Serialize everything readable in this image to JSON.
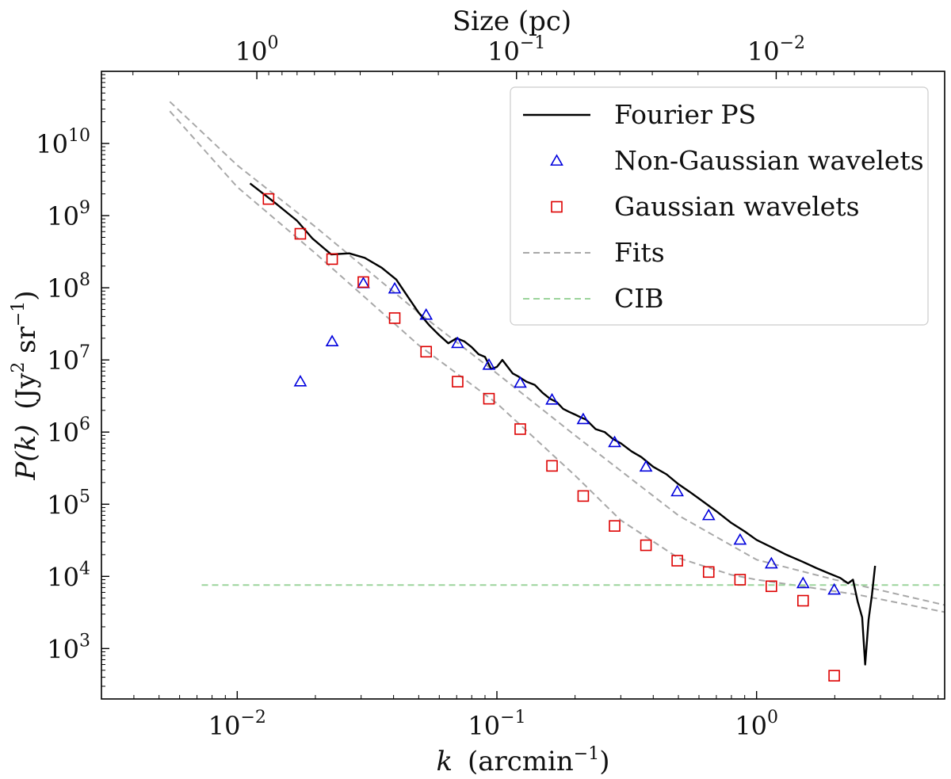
{
  "chart_data": {
    "type": "scatter",
    "title": "",
    "xlabel_main": "k",
    "xlabel_unit": "(arcmin",
    "xlabel_sup": "−1",
    "xlabel_close": ")",
    "ylabel_main": "P(k)",
    "ylabel_unit": "(Jy",
    "ylabel_sup1": "2",
    "ylabel_mid": " sr",
    "ylabel_sup2": "−1",
    "ylabel_close": ")",
    "top_axis_label": "Size (pc)",
    "xscale": "log",
    "yscale": "log",
    "xlim": [
      0.003,
      5.3
    ],
    "ylim": [
      200,
      100000000000
    ],
    "x_ticks": [
      {
        "value": 0.01,
        "base": "10",
        "exp": "−2"
      },
      {
        "value": 0.1,
        "base": "10",
        "exp": "−1"
      },
      {
        "value": 1,
        "base": "10",
        "exp": "0"
      }
    ],
    "y_ticks": [
      {
        "value": 1000,
        "base": "10",
        "exp": "3"
      },
      {
        "value": 10000,
        "base": "10",
        "exp": "4"
      },
      {
        "value": 100000,
        "base": "10",
        "exp": "5"
      },
      {
        "value": 1000000,
        "base": "10",
        "exp": "6"
      },
      {
        "value": 10000000,
        "base": "10",
        "exp": "7"
      },
      {
        "value": 100000000,
        "base": "10",
        "exp": "8"
      },
      {
        "value": 1000000000,
        "base": "10",
        "exp": "9"
      },
      {
        "value": 10000000000,
        "base": "10",
        "exp": "10"
      }
    ],
    "top_ticks": [
      {
        "value": 1,
        "base": "10",
        "exp": "0"
      },
      {
        "value": 0.1,
        "base": "10",
        "exp": "−1"
      },
      {
        "value": 0.01,
        "base": "10",
        "exp": "−2"
      }
    ],
    "top_axis_k_per_inverse_pc": 0.0119,
    "legend_position": "top-right",
    "legend": [
      {
        "label": "Fourier PS",
        "style": "line",
        "color": "#000000"
      },
      {
        "label": "Non-Gaussian wavelets",
        "style": "triangle",
        "color": "#0000dd"
      },
      {
        "label": "Gaussian wavelets",
        "style": "square",
        "color": "#dd0000"
      },
      {
        "label": "Fits",
        "style": "dashed",
        "color": "#a8a8a8"
      },
      {
        "label": "CIB",
        "style": "dashed",
        "color": "#9bd39b"
      }
    ],
    "series": [
      {
        "name": "Fourier PS",
        "kind": "line",
        "color": "#000000",
        "x": [
          0.0112,
          0.014,
          0.017,
          0.0195,
          0.023,
          0.027,
          0.031,
          0.036,
          0.041,
          0.046,
          0.05,
          0.055,
          0.06,
          0.065,
          0.07,
          0.075,
          0.08,
          0.085,
          0.09,
          0.095,
          0.1,
          0.105,
          0.11,
          0.115,
          0.12,
          0.13,
          0.14,
          0.15,
          0.16,
          0.17,
          0.18,
          0.19,
          0.2,
          0.21,
          0.22,
          0.24,
          0.26,
          0.28,
          0.3,
          0.33,
          0.36,
          0.4,
          0.45,
          0.5,
          0.55,
          0.6,
          0.7,
          0.8,
          0.9,
          1.0,
          1.15,
          1.3,
          1.5,
          1.7,
          1.9,
          2.1,
          2.25,
          2.35,
          2.45,
          2.55,
          2.62,
          2.7,
          2.78,
          2.86
        ],
        "y": [
          2800000000,
          1500000000,
          850000000,
          480000000,
          290000000,
          300000000,
          260000000,
          190000000,
          130000000,
          70000000,
          45000000,
          30000000,
          22000000,
          17000000,
          20000000,
          18000000,
          15000000,
          12000000,
          11000000,
          7500000,
          8000000,
          10000000,
          8000000,
          6500000,
          6000000,
          5000000,
          4500000,
          3500000,
          2900000,
          2600000,
          2100000,
          1900000,
          1750000,
          1600000,
          1500000,
          1100000,
          1000000,
          800000,
          700000,
          540000,
          450000,
          330000,
          260000,
          190000,
          150000,
          120000,
          80000,
          55000,
          42000,
          32000,
          25000,
          20000,
          16000,
          13000,
          11000,
          9500,
          8000,
          9000,
          4500,
          2700,
          600,
          2500,
          5500,
          14000
        ]
      },
      {
        "name": "Non-Gaussian wavelets",
        "kind": "triangle",
        "color": "#0000dd",
        "x": [
          0.0175,
          0.0232,
          0.0306,
          0.0404,
          0.0534,
          0.0706,
          0.0932,
          0.123,
          0.163,
          0.215,
          0.284,
          0.375,
          0.495,
          0.654,
          0.864,
          1.14,
          1.51,
          1.99
        ],
        "y": [
          5000000,
          18000000,
          115000000,
          97000000,
          42000000,
          17000000,
          8500000,
          4800000,
          2800000,
          1500000,
          720000,
          330000,
          150000,
          70000,
          32000,
          15000,
          8000,
          6500
        ]
      },
      {
        "name": "Gaussian wavelets",
        "kind": "square",
        "color": "#dd0000",
        "x": [
          0.0132,
          0.0175,
          0.0232,
          0.0306,
          0.0404,
          0.0534,
          0.0706,
          0.0932,
          0.123,
          0.163,
          0.215,
          0.284,
          0.375,
          0.495,
          0.654,
          0.864,
          1.14,
          1.51,
          1.99
        ],
        "y": [
          1700000000,
          560000000,
          250000000,
          120000000,
          38000000,
          13000000,
          5000000,
          2900000,
          1100000,
          340000,
          130000,
          50000,
          27000,
          16500,
          11500,
          9000,
          7300,
          4600,
          420
        ]
      },
      {
        "name": "Fits",
        "kind": "dashed",
        "color": "#a8a8a8",
        "x": [
          0.0055,
          0.01,
          0.02,
          0.05,
          0.1,
          0.2,
          0.5,
          1.0,
          2.0,
          5.3
        ],
        "y": [
          38000000000,
          5000000000,
          700000000,
          45000000,
          6500000,
          900000,
          70000,
          17000,
          9000,
          4000
        ]
      },
      {
        "name": "Fits",
        "kind": "dashed",
        "color": "#a8a8a8",
        "x": [
          0.0055,
          0.01,
          0.02,
          0.05,
          0.1,
          0.2,
          0.3,
          0.5,
          0.8,
          1.0,
          1.5,
          2.5,
          5.3
        ],
        "y": [
          28000000000,
          2500000000,
          300000000,
          16000000,
          2500000,
          250000,
          60000,
          18000,
          10500,
          9000,
          7300,
          5500,
          3200
        ]
      },
      {
        "name": "CIB",
        "kind": "dashed",
        "color": "#9bd39b",
        "x": [
          0.0073,
          5.3
        ],
        "y": [
          7600,
          7600
        ]
      }
    ]
  }
}
